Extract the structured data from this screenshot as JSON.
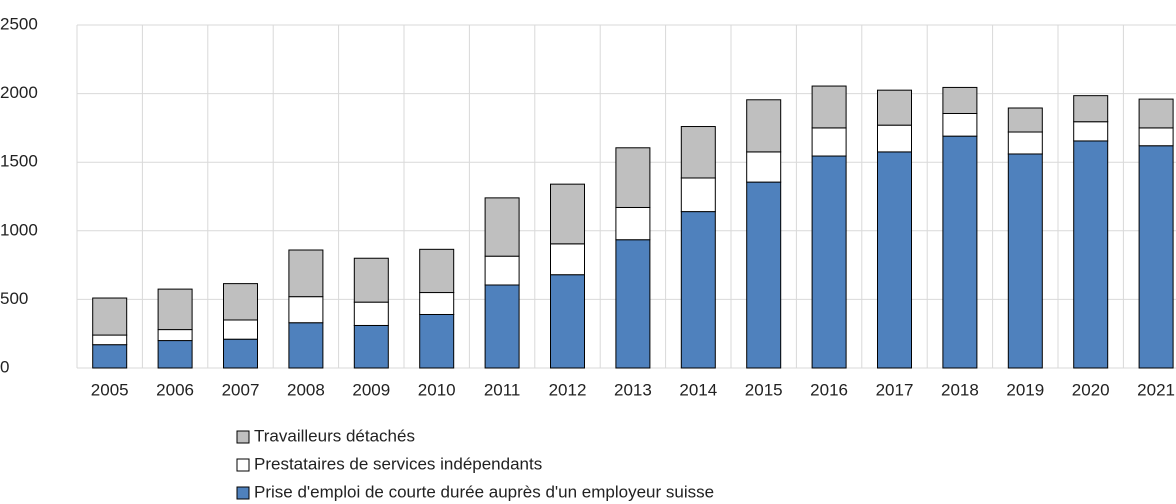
{
  "chart_data": {
    "type": "bar",
    "stacked": true,
    "categories": [
      "2005",
      "2006",
      "2007",
      "2008",
      "2009",
      "2010",
      "2011",
      "2012",
      "2013",
      "2014",
      "2015",
      "2016",
      "2017",
      "2018",
      "2019",
      "2020",
      "2021"
    ],
    "series": [
      {
        "name": "Prise d'emploi de courte durée auprès d'un employeur suisse",
        "color": "#4f81bd",
        "values": [
          170,
          200,
          210,
          330,
          310,
          390,
          605,
          680,
          935,
          1140,
          1355,
          1545,
          1575,
          1690,
          1560,
          1655,
          1620
        ]
      },
      {
        "name": "Prestataires de services indépendants",
        "color": "#ffffff",
        "values": [
          70,
          80,
          140,
          190,
          170,
          160,
          210,
          225,
          235,
          245,
          220,
          205,
          195,
          165,
          160,
          140,
          130
        ]
      },
      {
        "name": "Travailleurs détachés",
        "color": "#bfbfbf",
        "values": [
          270,
          295,
          265,
          340,
          320,
          315,
          425,
          435,
          435,
          375,
          380,
          305,
          255,
          190,
          175,
          190,
          210
        ]
      }
    ],
    "ylim": [
      0,
      2500
    ],
    "yticks": [
      0,
      500,
      1000,
      1500,
      2000,
      2500
    ],
    "grid": true
  }
}
